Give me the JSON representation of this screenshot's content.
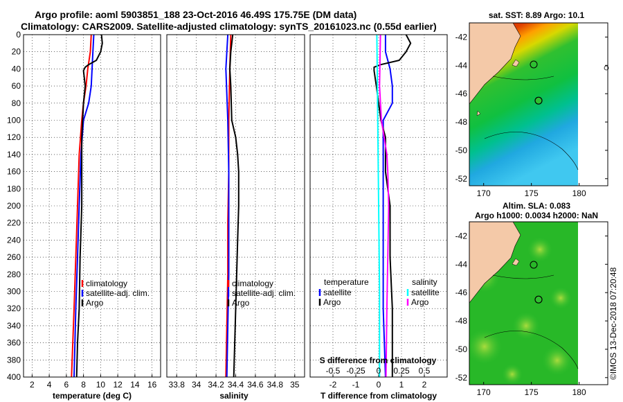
{
  "figure": {
    "title_line1": "Argo profile: aoml 5903851_188 23-Oct-2016 46.49S 175.75E (DM data)",
    "title_line2": "Climatology: CARS2009. Satellite-adjusted climatology: synTS_20161023.nc (0.55d earlier)",
    "credit": "©IMOS 13-Dec-2018 07:20:48"
  },
  "colors": {
    "climatology": "#ff0000",
    "satellite": "#0000ff",
    "argo": "#000000",
    "sat_salinity": "#00ffff",
    "argo_salinity": "#ff00ff",
    "land": "#f4c9a8"
  },
  "chart_data": [
    {
      "type": "line",
      "title": "",
      "xlabel": "temperature (deg C)",
      "ylabel": "",
      "xlim": [
        1,
        17
      ],
      "ylim": [
        400,
        0
      ],
      "xticks": [
        2,
        4,
        6,
        8,
        10,
        12,
        14,
        16
      ],
      "xtick_labels": [
        "2",
        "4",
        "6",
        "8",
        "10",
        "12",
        "14",
        "16"
      ],
      "yticks": [
        0,
        20,
        40,
        60,
        80,
        100,
        120,
        140,
        160,
        180,
        200,
        220,
        240,
        260,
        280,
        300,
        320,
        340,
        360,
        380,
        400
      ],
      "grid": true,
      "legend": [
        "climatology",
        "satellite-adj. clim.",
        "Argo"
      ],
      "series": [
        {
          "name": "climatology",
          "depth": [
            0,
            20,
            40,
            60,
            80,
            100,
            140,
            200,
            260,
            320,
            400
          ],
          "values": [
            8.9,
            8.8,
            8.5,
            8.3,
            8.0,
            7.8,
            7.5,
            7.3,
            7.1,
            6.9,
            6.6
          ]
        },
        {
          "name": "satellite-adj. clim.",
          "depth": [
            0,
            20,
            40,
            60,
            80,
            100,
            140,
            200,
            260,
            320,
            400
          ],
          "values": [
            9.2,
            9.1,
            9.0,
            8.9,
            8.6,
            8.0,
            7.7,
            7.5,
            7.3,
            7.1,
            6.9
          ]
        },
        {
          "name": "Argo",
          "depth": [
            0,
            10,
            20,
            30,
            35,
            38,
            42,
            60,
            80,
            100,
            120,
            160,
            200,
            260,
            320,
            360,
            400
          ],
          "values": [
            10.1,
            10.2,
            10.0,
            9.5,
            8.6,
            8.2,
            8.0,
            8.2,
            8.0,
            7.9,
            7.8,
            7.8,
            7.8,
            7.6,
            7.5,
            7.3,
            7.2
          ]
        }
      ]
    },
    {
      "type": "line",
      "xlabel": "salinity",
      "xlim": [
        33.7,
        35.1
      ],
      "ylim": [
        400,
        0
      ],
      "xticks": [
        33.8,
        34.0,
        34.2,
        34.4,
        34.6,
        34.8,
        35.0
      ],
      "xtick_labels": [
        "33.8",
        "34",
        "34.2",
        "34.4",
        "34.6",
        "34.8",
        "35"
      ],
      "grid": true,
      "legend": [
        "climatology",
        "satellite-adj. clim.",
        "Argo"
      ],
      "series": [
        {
          "name": "climatology",
          "depth": [
            0,
            40,
            100,
            160,
            220,
            280,
            340,
            400
          ],
          "values": [
            34.35,
            34.34,
            34.33,
            34.33,
            34.32,
            34.32,
            34.31,
            34.3
          ]
        },
        {
          "name": "satellite-adj. clim.",
          "depth": [
            0,
            40,
            100,
            160,
            220,
            280,
            340,
            400
          ],
          "values": [
            34.32,
            34.3,
            34.32,
            34.33,
            34.33,
            34.33,
            34.32,
            34.31
          ]
        },
        {
          "name": "Argo",
          "depth": [
            0,
            20,
            40,
            60,
            100,
            120,
            140,
            160,
            200,
            240,
            280,
            320,
            360,
            400
          ],
          "values": [
            34.37,
            34.35,
            34.34,
            34.35,
            34.36,
            34.4,
            34.42,
            34.43,
            34.43,
            34.42,
            34.41,
            34.4,
            34.39,
            34.38
          ]
        }
      ]
    },
    {
      "type": "line",
      "xlabel": "T difference from climatology",
      "xlabel2": "S difference from climatology",
      "xlim": [
        -3,
        3
      ],
      "ylim": [
        400,
        0
      ],
      "xticks": [
        -2,
        -1,
        0,
        1,
        2
      ],
      "xtick_labels": [
        "-2",
        "-1",
        "0",
        "1",
        "2"
      ],
      "s_xlim": [
        -0.75,
        0.75
      ],
      "s_xticks": [
        -0.5,
        -0.25,
        0,
        0.25,
        0.5
      ],
      "s_xtick_labels": [
        "-0.5",
        "-0.25",
        "0",
        "0.25",
        "0.5"
      ],
      "grid": true,
      "legend_temperature_title": "temperature",
      "legend_salinity_title": "salinity",
      "legend_temperature": [
        "satellite",
        "Argo"
      ],
      "legend_salinity": [
        "satellite",
        "Argo"
      ],
      "series": [
        {
          "name": "temperature satellite",
          "kind": "T",
          "depth": [
            0,
            20,
            40,
            60,
            80,
            100,
            140,
            200,
            260,
            320,
            400
          ],
          "values": [
            0.3,
            0.3,
            0.5,
            0.6,
            0.6,
            0.2,
            0.2,
            0.2,
            0.2,
            0.2,
            0.3
          ]
        },
        {
          "name": "temperature Argo",
          "kind": "T",
          "depth": [
            0,
            10,
            20,
            30,
            35,
            38,
            42,
            60,
            80,
            100,
            120,
            140,
            160,
            200,
            260,
            320,
            400
          ],
          "values": [
            1.2,
            1.4,
            1.2,
            0.9,
            0.1,
            -0.2,
            -0.2,
            -0.1,
            0.0,
            0.1,
            0.3,
            0.3,
            0.3,
            0.5,
            0.5,
            0.6,
            0.6
          ]
        },
        {
          "name": "salinity satellite",
          "kind": "S",
          "depth": [
            0,
            100,
            200,
            300,
            400
          ],
          "values": [
            -0.02,
            -0.01,
            0.0,
            0.01,
            0.01
          ]
        },
        {
          "name": "salinity Argo",
          "kind": "S",
          "depth": [
            0,
            60,
            100,
            140,
            160,
            200,
            260,
            320,
            400
          ],
          "values": [
            0.02,
            0.01,
            0.03,
            0.09,
            0.1,
            0.11,
            0.1,
            0.09,
            0.08
          ]
        }
      ]
    },
    {
      "type": "heatmap",
      "title": "sat. SST: 8.89 Argo: 10.1",
      "xlim": [
        168.5,
        183
      ],
      "ylim": [
        -52.5,
        -41
      ],
      "xticks": [
        170,
        175,
        180
      ],
      "xtick_labels": [
        "170",
        "175",
        "180"
      ],
      "yticks": [
        -42,
        -44,
        -46,
        -48,
        -50,
        -52
      ],
      "ytick_labels": [
        "-42",
        "-44",
        "-46",
        "-48",
        "-50",
        "-52"
      ],
      "argo_position": {
        "lon": 175.75,
        "lat": -46.49
      },
      "data_extent_lon_max": 180
    },
    {
      "type": "heatmap",
      "title": "Altim. SLA: 0.083",
      "subtitle": "Argo h1000: 0.0034 h2000: NaN",
      "xlim": [
        168.5,
        183
      ],
      "ylim": [
        -52.5,
        -41
      ],
      "xticks": [
        170,
        175,
        180
      ],
      "xtick_labels": [
        "170",
        "175",
        "180"
      ],
      "yticks": [
        -42,
        -44,
        -46,
        -48,
        -50,
        -52
      ],
      "ytick_labels": [
        "-42",
        "-44",
        "-46",
        "-48",
        "-50",
        "-52"
      ],
      "argo_position": {
        "lon": 175.75,
        "lat": -46.49
      },
      "data_extent_lon_max": 180
    }
  ]
}
